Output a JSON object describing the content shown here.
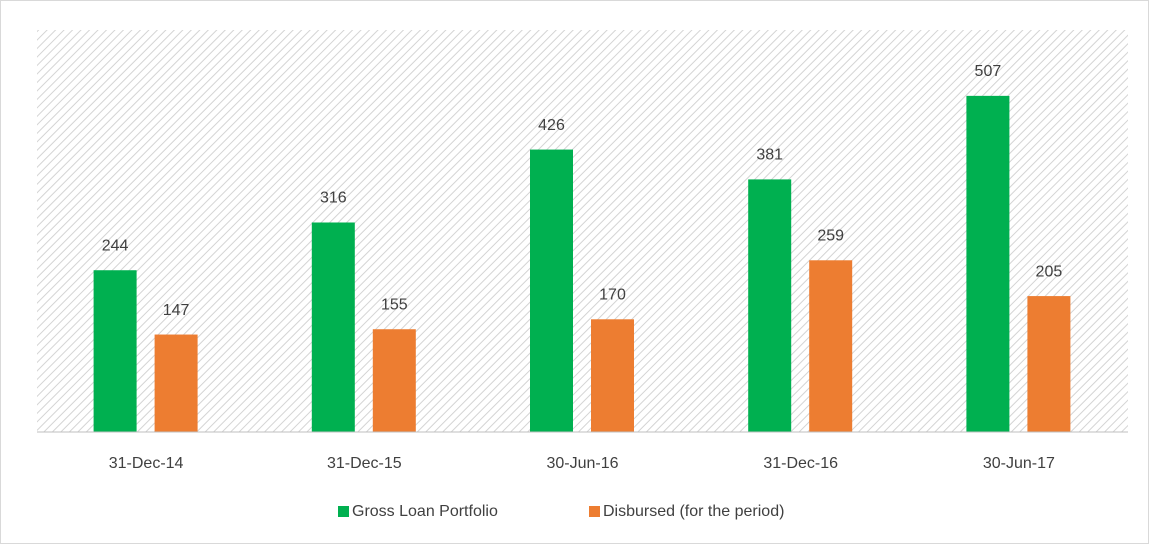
{
  "chart_data": {
    "type": "bar",
    "categories": [
      "31-Dec-14",
      "31-Dec-15",
      "30-Jun-16",
      "31-Dec-16",
      "30-Jun-17"
    ],
    "series": [
      {
        "name": "Gross Loan Portfolio",
        "color": "#00b050",
        "values": [
          244,
          316,
          426,
          381,
          507
        ]
      },
      {
        "name": "Disbursed (for the period)",
        "color": "#ed7d31",
        "values": [
          147,
          155,
          170,
          259,
          205
        ]
      }
    ]
  }
}
